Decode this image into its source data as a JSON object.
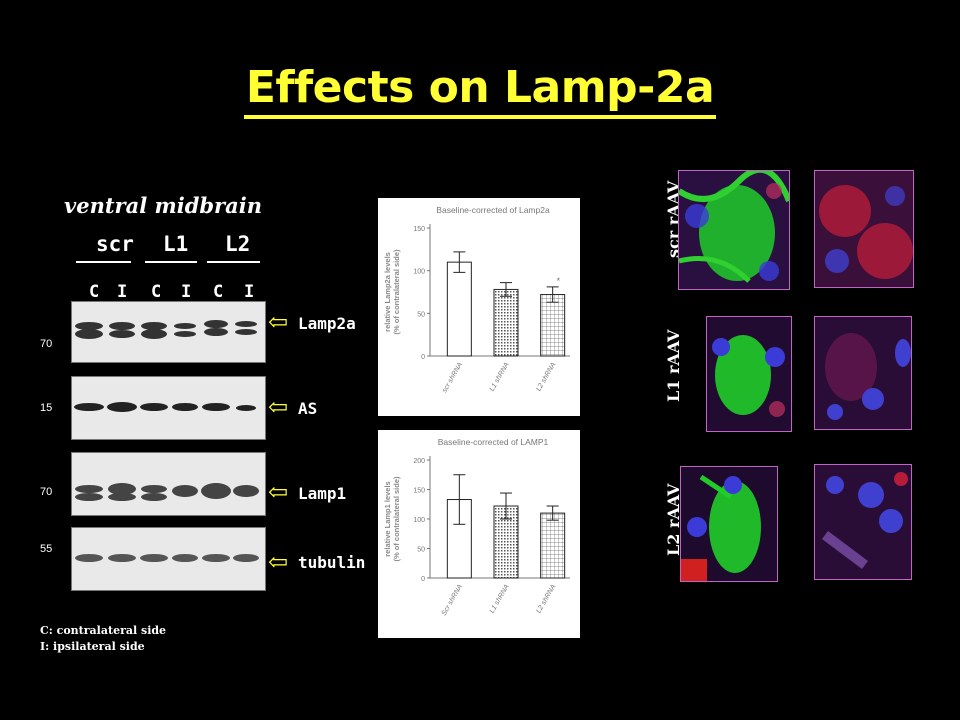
{
  "title": "Effects on Lamp-2a",
  "region_label": "ventral midbrain",
  "groups": [
    "scr",
    "L1",
    "L2"
  ],
  "lanes": [
    "C",
    "I",
    "C",
    "I",
    "C",
    "I"
  ],
  "blots": [
    {
      "mw": "70",
      "label": "Lamp2a"
    },
    {
      "mw": "15",
      "label": "AS"
    },
    {
      "mw": "70",
      "label": "Lamp1"
    },
    {
      "mw": "55",
      "label": "tubulin"
    }
  ],
  "legend": {
    "c": "C: contralateral side",
    "i": "I: ipsilateral side"
  },
  "micro_rows": [
    "scr rAAV",
    "L1 rAAV",
    "L2 rAAV"
  ],
  "colors": {
    "title": "#ffff33",
    "arrow": "#ffff33",
    "frame": "#c066c0"
  },
  "chart_data": [
    {
      "type": "bar",
      "title": "Baseline-corrected of Lamp2a",
      "ylabel": "relative Lamp2a levels\n(% of contralateral side)",
      "categories": [
        "scr shRNA",
        "L1 shRNA",
        "L2 shRNA"
      ],
      "values": [
        110,
        78,
        72
      ],
      "errors": [
        12,
        8,
        9
      ],
      "ylim": [
        0,
        150
      ],
      "yticks": [
        "0",
        "50",
        "100",
        "150"
      ],
      "annotation": "*",
      "grid": false
    },
    {
      "type": "bar",
      "title": "Baseline-corrected of LAMP1",
      "ylabel": "relative Lamp1 levels\n(% of contralateral side)",
      "categories": [
        "Scr shRNA",
        "L1 shRNA",
        "L2 shRNA"
      ],
      "values": [
        133,
        122,
        110
      ],
      "errors": [
        42,
        22,
        12
      ],
      "ylim": [
        0,
        200
      ],
      "yticks": [
        "0",
        "50",
        "100",
        "150",
        "200"
      ],
      "grid": false
    }
  ]
}
